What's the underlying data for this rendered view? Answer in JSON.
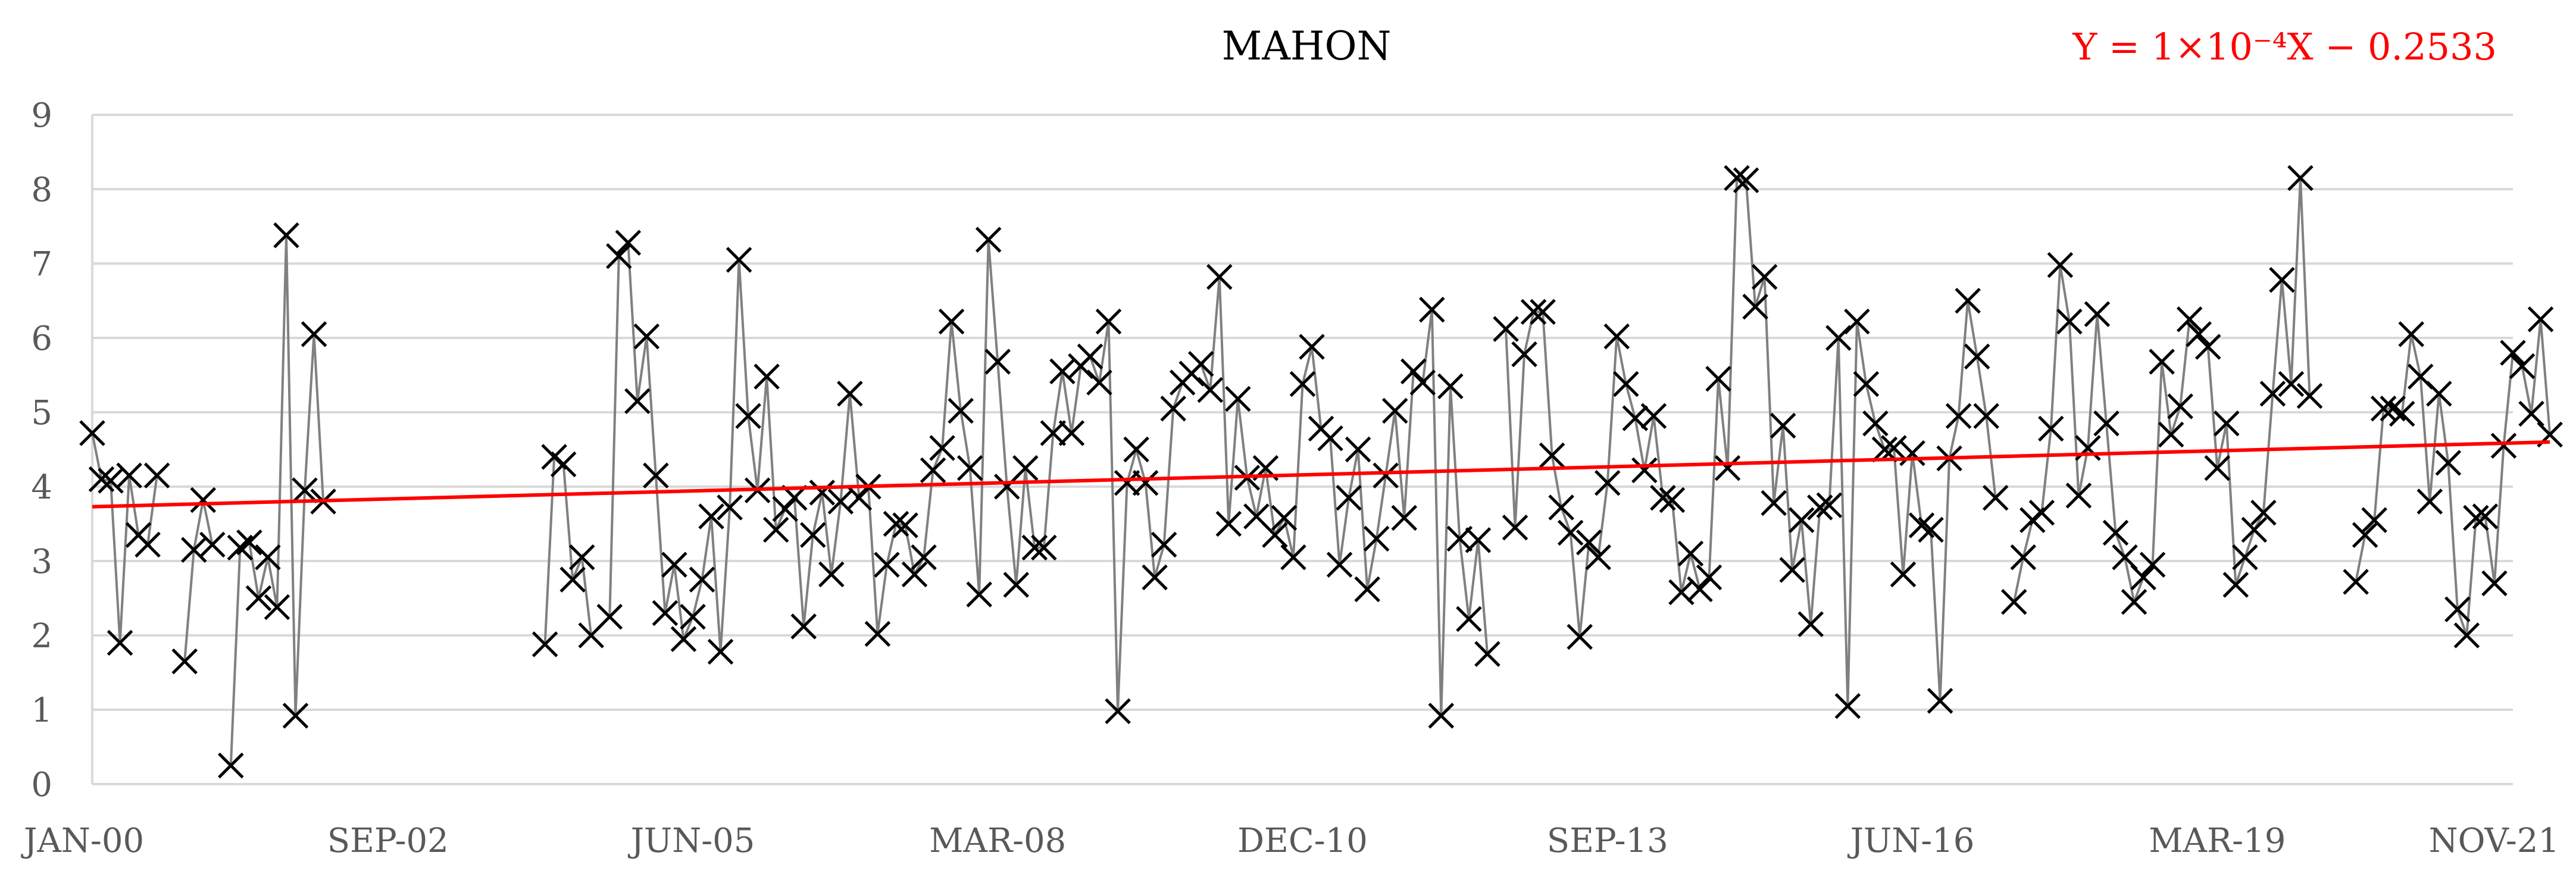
{
  "chart_data": {
    "type": "scatter",
    "title": "MAHON",
    "annotation": "Y = 1×10⁻⁴X − 0.2533",
    "xlabel": "",
    "ylabel": "",
    "ylim": [
      0,
      9
    ],
    "xlim": [
      "2000-01",
      "2021-11"
    ],
    "yticks": [
      0,
      1,
      2,
      3,
      4,
      5,
      6,
      7,
      8,
      9
    ],
    "xticks": [
      {
        "label": "JAN-00",
        "date": "2000-01"
      },
      {
        "label": "SEP-02",
        "date": "2002-09"
      },
      {
        "label": "JUN-05",
        "date": "2005-06"
      },
      {
        "label": "MAR-08",
        "date": "2008-03"
      },
      {
        "label": "DEC-10",
        "date": "2010-12"
      },
      {
        "label": "SEP-13",
        "date": "2013-09"
      },
      {
        "label": "JUN-16",
        "date": "2016-06"
      },
      {
        "label": "MAR-19",
        "date": "2019-03"
      },
      {
        "label": "NOV-21",
        "date": "2021-11"
      }
    ],
    "grid": true,
    "legend": "none",
    "colors": {
      "series": "#808080",
      "marker": "#000000",
      "trend": "#ff0000",
      "annotation": "#ff0000",
      "grid": "#d9d9d9",
      "tick": "#595959"
    },
    "series": [
      {
        "marker": "x",
        "points": [
          [
            "2000-01",
            4.72
          ],
          [
            "2000-02",
            4.1
          ],
          [
            "2000-03",
            4.08
          ],
          [
            "2000-04",
            1.9
          ],
          [
            "2000-05",
            4.15
          ],
          [
            "2000-06",
            3.35
          ],
          [
            "2000-07",
            3.22
          ],
          [
            "2000-08",
            4.15
          ],
          [
            "2000-11",
            1.65
          ],
          [
            "2000-12",
            3.15
          ],
          [
            "2001-01",
            3.82
          ],
          [
            "2001-02",
            3.22
          ],
          [
            "2001-04",
            0.25
          ],
          [
            "2001-05",
            3.18
          ],
          [
            "2001-06",
            3.25
          ],
          [
            "2001-07",
            2.5
          ],
          [
            "2001-08",
            3.05
          ],
          [
            "2001-09",
            2.38
          ],
          [
            "2001-10",
            7.38
          ],
          [
            "2001-11",
            0.92
          ],
          [
            "2001-12",
            3.95
          ],
          [
            "2002-01",
            6.05
          ],
          [
            "2002-02",
            3.8
          ],
          [
            "2004-02",
            1.88
          ],
          [
            "2004-03",
            4.4
          ],
          [
            "2004-04",
            4.3
          ],
          [
            "2004-05",
            2.75
          ],
          [
            "2004-06",
            3.05
          ],
          [
            "2004-07",
            2.0
          ],
          [
            "2004-09",
            2.25
          ],
          [
            "2004-10",
            7.1
          ],
          [
            "2004-11",
            7.28
          ],
          [
            "2004-12",
            5.15
          ],
          [
            "2005-01",
            6.02
          ],
          [
            "2005-02",
            4.15
          ],
          [
            "2005-03",
            2.3
          ],
          [
            "2005-04",
            2.95
          ],
          [
            "2005-05",
            1.95
          ],
          [
            "2005-06",
            2.25
          ],
          [
            "2005-07",
            2.75
          ],
          [
            "2005-08",
            3.6
          ],
          [
            "2005-09",
            1.78
          ],
          [
            "2005-10",
            3.72
          ],
          [
            "2005-11",
            7.05
          ],
          [
            "2005-12",
            4.95
          ],
          [
            "2006-01",
            3.95
          ],
          [
            "2006-02",
            5.48
          ],
          [
            "2006-03",
            3.42
          ],
          [
            "2006-04",
            3.7
          ],
          [
            "2006-05",
            3.85
          ],
          [
            "2006-06",
            2.12
          ],
          [
            "2006-07",
            3.35
          ],
          [
            "2006-08",
            3.92
          ],
          [
            "2006-09",
            2.82
          ],
          [
            "2006-10",
            3.8
          ],
          [
            "2006-11",
            5.25
          ],
          [
            "2006-12",
            3.85
          ],
          [
            "2007-01",
            4.0
          ],
          [
            "2007-02",
            2.02
          ],
          [
            "2007-03",
            2.95
          ],
          [
            "2007-04",
            3.5
          ],
          [
            "2007-05",
            3.48
          ],
          [
            "2007-06",
            2.82
          ],
          [
            "2007-07",
            3.05
          ],
          [
            "2007-08",
            4.22
          ],
          [
            "2007-09",
            4.52
          ],
          [
            "2007-10",
            6.22
          ],
          [
            "2007-11",
            5.02
          ],
          [
            "2007-12",
            4.25
          ],
          [
            "2008-01",
            2.55
          ],
          [
            "2008-02",
            7.32
          ],
          [
            "2008-03",
            5.68
          ],
          [
            "2008-04",
            4.0
          ],
          [
            "2008-05",
            2.68
          ],
          [
            "2008-06",
            4.25
          ],
          [
            "2008-07",
            3.18
          ],
          [
            "2008-08",
            3.18
          ],
          [
            "2008-09",
            4.72
          ],
          [
            "2008-10",
            5.55
          ],
          [
            "2008-11",
            4.72
          ],
          [
            "2008-12",
            5.62
          ],
          [
            "2009-01",
            5.75
          ],
          [
            "2009-02",
            5.4
          ],
          [
            "2009-03",
            6.22
          ],
          [
            "2009-04",
            0.98
          ],
          [
            "2009-05",
            4.05
          ],
          [
            "2009-06",
            4.5
          ],
          [
            "2009-07",
            4.05
          ],
          [
            "2009-08",
            2.78
          ],
          [
            "2009-09",
            3.22
          ],
          [
            "2009-10",
            5.05
          ],
          [
            "2009-11",
            5.4
          ],
          [
            "2009-12",
            5.52
          ],
          [
            "2010-01",
            5.65
          ],
          [
            "2010-02",
            5.3
          ],
          [
            "2010-03",
            6.82
          ],
          [
            "2010-04",
            3.5
          ],
          [
            "2010-05",
            5.18
          ],
          [
            "2010-06",
            4.12
          ],
          [
            "2010-07",
            3.6
          ],
          [
            "2010-08",
            4.25
          ],
          [
            "2010-09",
            3.35
          ],
          [
            "2010-10",
            3.58
          ],
          [
            "2010-11",
            3.05
          ],
          [
            "2010-12",
            5.38
          ],
          [
            "2011-01",
            5.88
          ],
          [
            "2011-02",
            4.78
          ],
          [
            "2011-03",
            4.65
          ],
          [
            "2011-04",
            2.95
          ],
          [
            "2011-05",
            3.85
          ],
          [
            "2011-06",
            4.5
          ],
          [
            "2011-07",
            2.62
          ],
          [
            "2011-08",
            3.3
          ],
          [
            "2011-09",
            4.15
          ],
          [
            "2011-10",
            5.02
          ],
          [
            "2011-11",
            3.58
          ],
          [
            "2011-12",
            5.55
          ],
          [
            "2012-01",
            5.4
          ],
          [
            "2012-02",
            6.38
          ],
          [
            "2012-03",
            0.92
          ],
          [
            "2012-04",
            5.35
          ],
          [
            "2012-05",
            3.3
          ],
          [
            "2012-06",
            2.22
          ],
          [
            "2012-07",
            3.28
          ],
          [
            "2012-08",
            1.75
          ],
          [
            "2012-10",
            6.12
          ],
          [
            "2012-11",
            3.45
          ],
          [
            "2012-12",
            5.78
          ],
          [
            "2013-01",
            6.35
          ],
          [
            "2013-02",
            6.35
          ],
          [
            "2013-03",
            4.42
          ],
          [
            "2013-04",
            3.72
          ],
          [
            "2013-05",
            3.38
          ],
          [
            "2013-06",
            1.98
          ],
          [
            "2013-07",
            3.25
          ],
          [
            "2013-08",
            3.05
          ],
          [
            "2013-09",
            4.05
          ],
          [
            "2013-10",
            6.02
          ],
          [
            "2013-11",
            5.38
          ],
          [
            "2013-12",
            4.92
          ],
          [
            "2014-01",
            4.22
          ],
          [
            "2014-02",
            4.95
          ],
          [
            "2014-03",
            3.85
          ],
          [
            "2014-04",
            3.82
          ],
          [
            "2014-05",
            2.58
          ],
          [
            "2014-06",
            3.1
          ],
          [
            "2014-07",
            2.62
          ],
          [
            "2014-08",
            2.78
          ],
          [
            "2014-09",
            5.45
          ],
          [
            "2014-10",
            4.25
          ],
          [
            "2014-11",
            8.15
          ],
          [
            "2014-12",
            8.12
          ],
          [
            "2015-01",
            6.42
          ],
          [
            "2015-02",
            6.82
          ],
          [
            "2015-03",
            3.78
          ],
          [
            "2015-04",
            4.82
          ],
          [
            "2015-05",
            2.88
          ],
          [
            "2015-06",
            3.55
          ],
          [
            "2015-07",
            2.15
          ],
          [
            "2015-08",
            3.72
          ],
          [
            "2015-09",
            3.75
          ],
          [
            "2015-10",
            6.0
          ],
          [
            "2015-11",
            1.05
          ],
          [
            "2015-12",
            6.22
          ],
          [
            "2016-01",
            5.38
          ],
          [
            "2016-02",
            4.85
          ],
          [
            "2016-03",
            4.5
          ],
          [
            "2016-04",
            4.52
          ],
          [
            "2016-05",
            2.82
          ],
          [
            "2016-06",
            4.45
          ],
          [
            "2016-07",
            3.48
          ],
          [
            "2016-08",
            3.42
          ],
          [
            "2016-09",
            1.12
          ],
          [
            "2016-10",
            4.38
          ],
          [
            "2016-11",
            4.95
          ],
          [
            "2016-12",
            6.5
          ],
          [
            "2017-01",
            5.75
          ],
          [
            "2017-02",
            4.95
          ],
          [
            "2017-03",
            3.85
          ],
          [
            "2017-05",
            2.45
          ],
          [
            "2017-06",
            3.05
          ],
          [
            "2017-07",
            3.55
          ],
          [
            "2017-08",
            3.65
          ],
          [
            "2017-09",
            4.78
          ],
          [
            "2017-10",
            6.98
          ],
          [
            "2017-11",
            6.22
          ],
          [
            "2017-12",
            3.88
          ],
          [
            "2018-01",
            4.52
          ],
          [
            "2018-02",
            6.32
          ],
          [
            "2018-03",
            4.85
          ],
          [
            "2018-04",
            3.38
          ],
          [
            "2018-05",
            3.05
          ],
          [
            "2018-06",
            2.45
          ],
          [
            "2018-07",
            2.78
          ],
          [
            "2018-08",
            2.95
          ],
          [
            "2018-09",
            5.68
          ],
          [
            "2018-10",
            4.7
          ],
          [
            "2018-11",
            5.08
          ],
          [
            "2018-12",
            6.25
          ],
          [
            "2019-01",
            6.05
          ],
          [
            "2019-02",
            5.88
          ],
          [
            "2019-03",
            4.25
          ],
          [
            "2019-04",
            4.85
          ],
          [
            "2019-05",
            2.68
          ],
          [
            "2019-06",
            3.05
          ],
          [
            "2019-07",
            3.42
          ],
          [
            "2019-08",
            3.65
          ],
          [
            "2019-09",
            5.25
          ],
          [
            "2019-10",
            6.78
          ],
          [
            "2019-11",
            5.38
          ],
          [
            "2019-12",
            8.15
          ],
          [
            "2020-01",
            5.22
          ],
          [
            "2020-06",
            2.72
          ],
          [
            "2020-07",
            3.35
          ],
          [
            "2020-08",
            3.55
          ],
          [
            "2020-09",
            5.05
          ],
          [
            "2020-10",
            5.05
          ],
          [
            "2020-11",
            4.98
          ],
          [
            "2020-12",
            6.05
          ],
          [
            "2021-01",
            5.48
          ],
          [
            "2021-02",
            3.8
          ],
          [
            "2021-03",
            5.25
          ],
          [
            "2021-04",
            4.32
          ],
          [
            "2021-05",
            2.35
          ],
          [
            "2021-06",
            2.0
          ],
          [
            "2021-07",
            3.58
          ],
          [
            "2021-08",
            3.6
          ],
          [
            "2021-09",
            2.7
          ],
          [
            "2021-10",
            4.55
          ],
          [
            "2021-11",
            5.8
          ],
          [
            "2021-12",
            5.62
          ],
          [
            "2022-01",
            4.98
          ],
          [
            "2022-02",
            6.25
          ],
          [
            "2022-03",
            4.7
          ]
        ]
      }
    ],
    "trendline": {
      "start": [
        "2000-01",
        3.73
      ],
      "end": [
        "2022-03",
        4.6
      ]
    }
  }
}
